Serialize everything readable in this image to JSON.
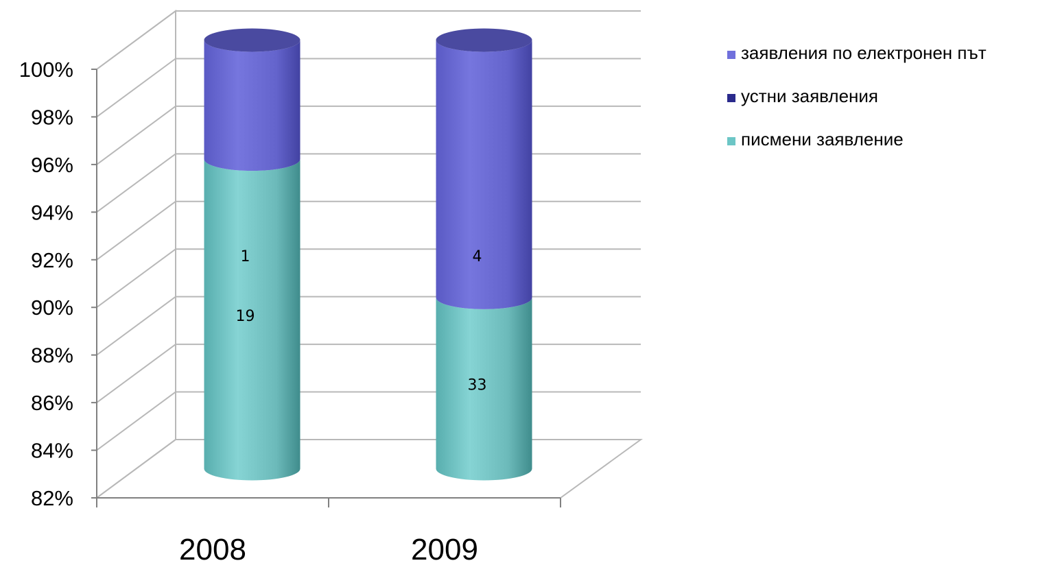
{
  "chart_data": {
    "type": "bar",
    "stacked": "percent",
    "style": "3d-cylinder",
    "categories": [
      "2008",
      "2009"
    ],
    "series": [
      {
        "name": "писмени заявление",
        "values": [
          19,
          33
        ],
        "color": "#7ccccc"
      },
      {
        "name": "устни заявления",
        "values": [
          1,
          4
        ],
        "color": "#6c6cd8"
      },
      {
        "name": "заявления по електронен път",
        "values": [
          0,
          0
        ],
        "color": "#7878dc"
      }
    ],
    "legend": {
      "position": "top-right",
      "entries": [
        {
          "label": "заявления по електронен път",
          "color": "#7070dc"
        },
        {
          "label": "устни заявления",
          "color": "#2a2a8c"
        },
        {
          "label": "писмени заявление",
          "color": "#6cc6c6"
        }
      ]
    },
    "yticks": [
      "82%",
      "84%",
      "86%",
      "88%",
      "90%",
      "92%",
      "94%",
      "96%",
      "98%",
      "100%"
    ],
    "ylim": [
      82,
      100
    ],
    "grid": true,
    "title": "",
    "xlabel": "",
    "ylabel": ""
  }
}
